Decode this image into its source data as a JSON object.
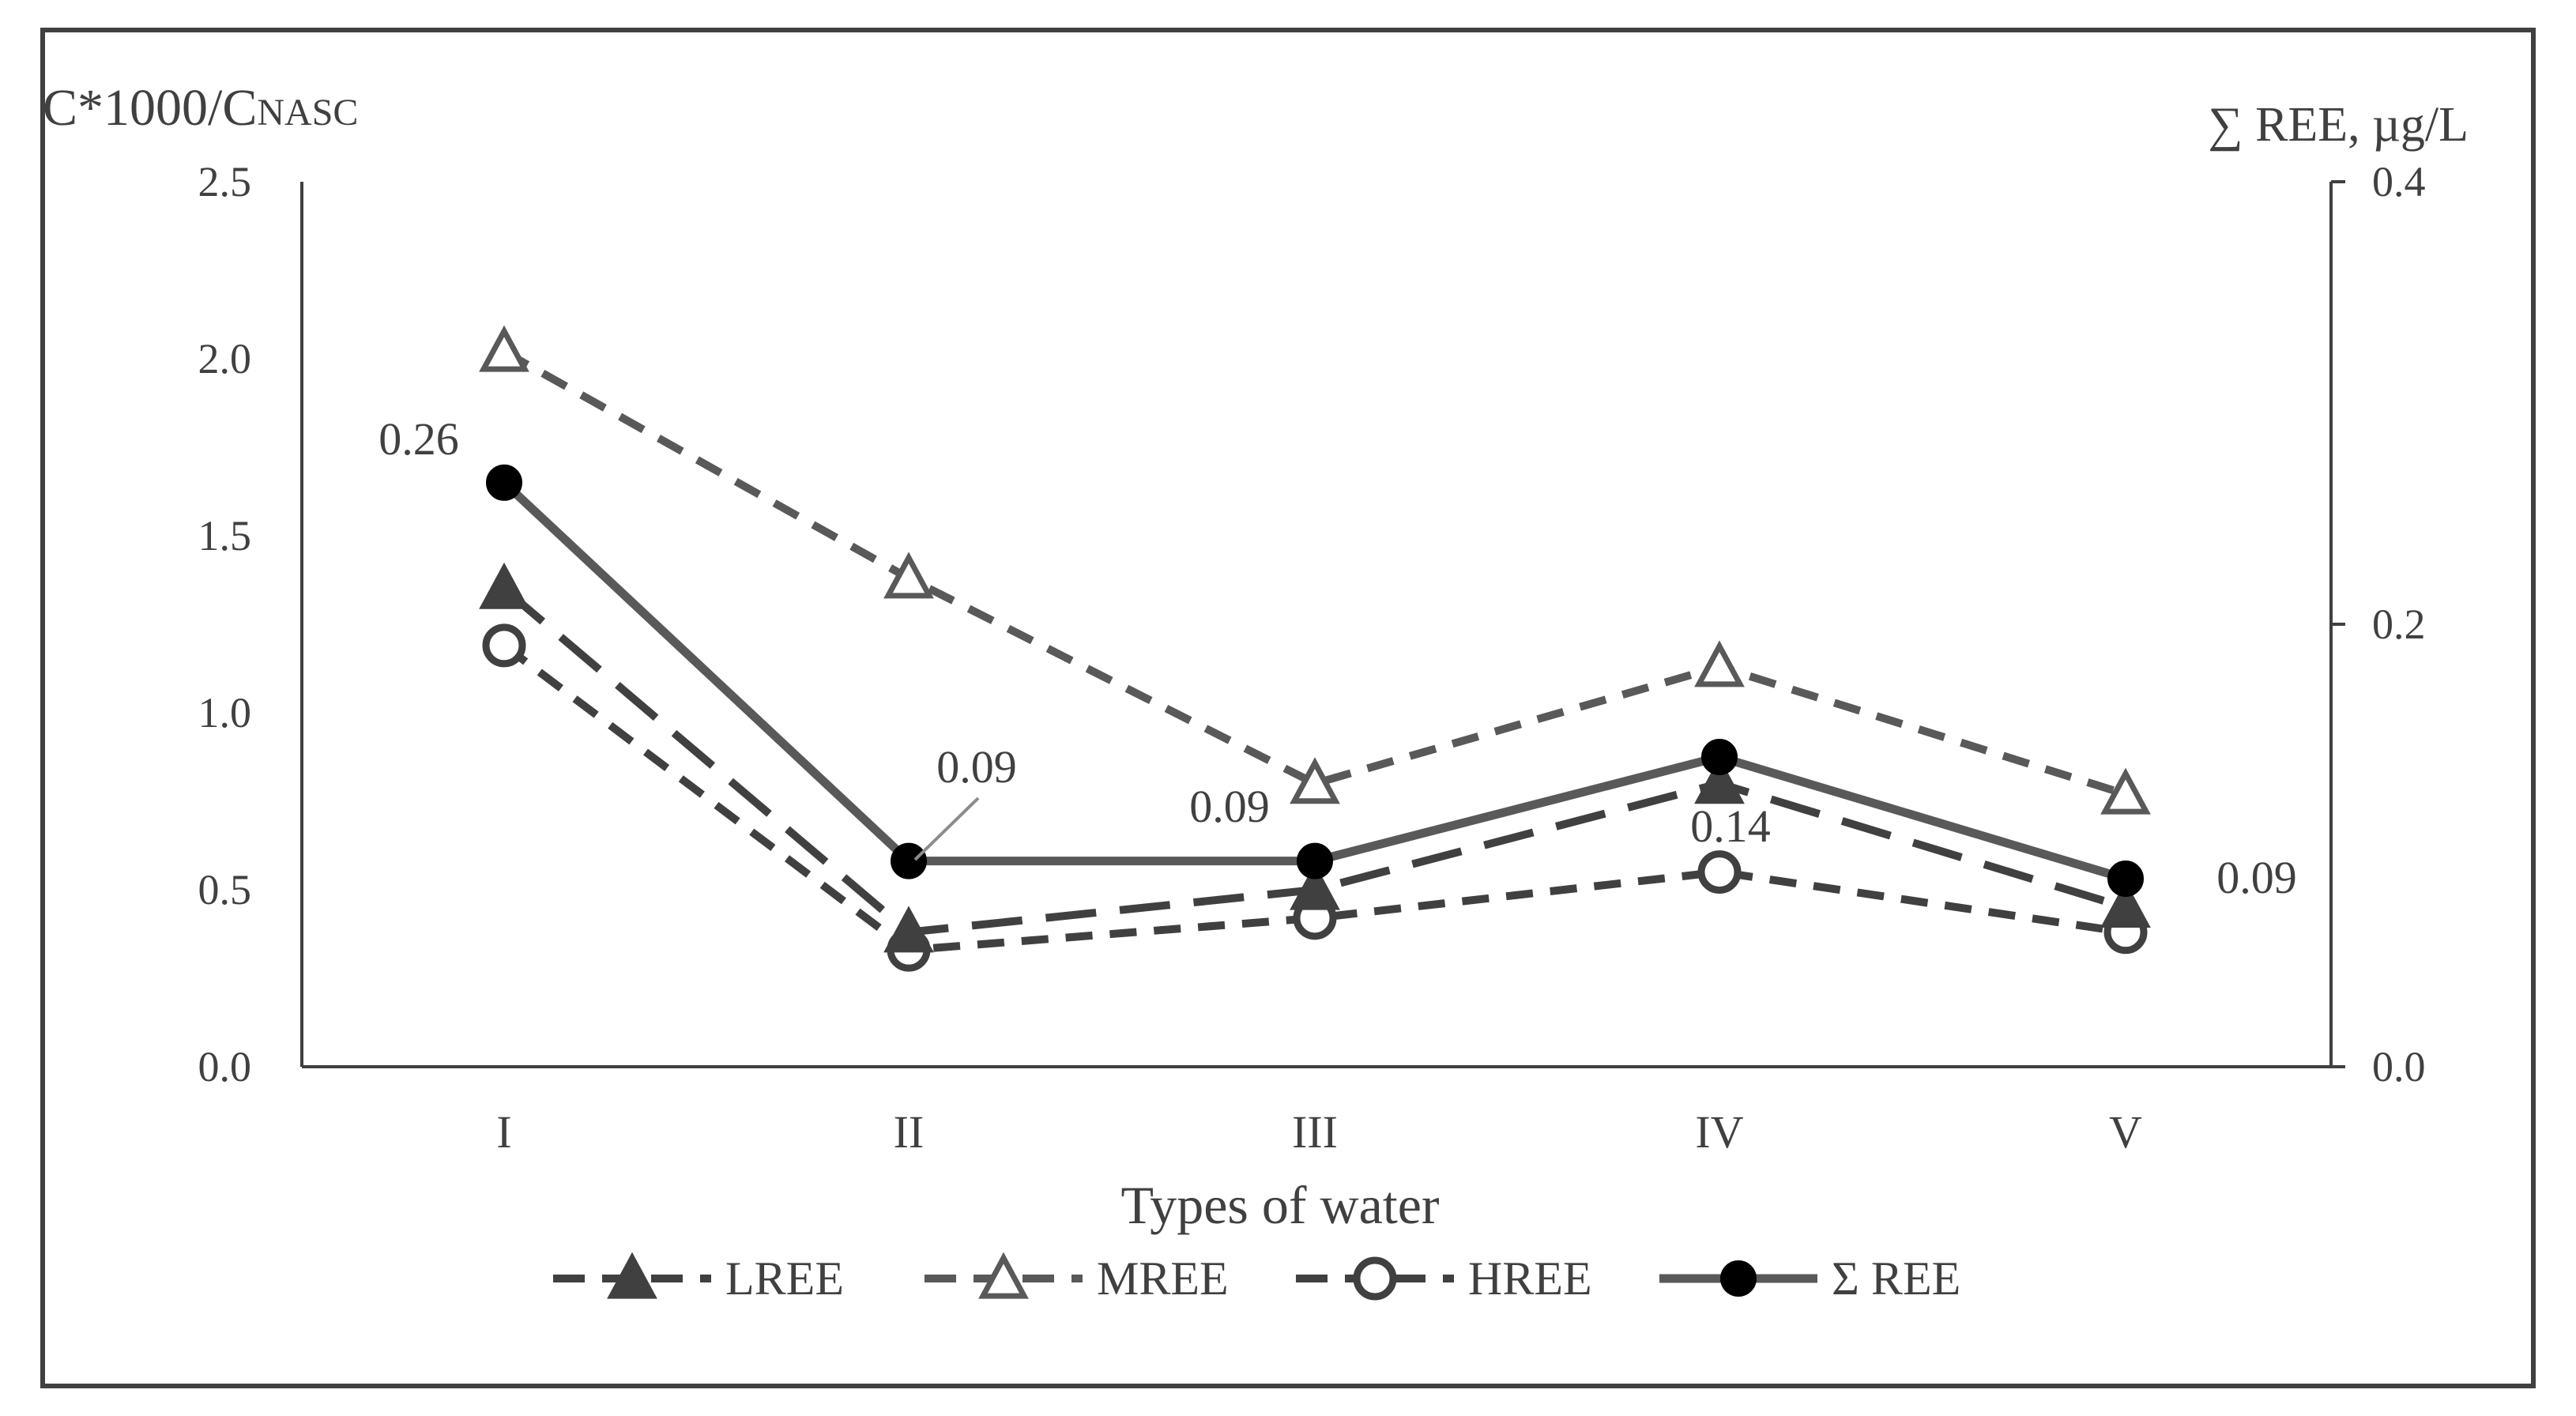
{
  "chart_data": {
    "type": "line",
    "xlabel": "Types of water",
    "ylabel_left": "C*1000/C",
    "ylabel_left_subscript": "NASC",
    "ylabel_right": "∑ REE, µg/L",
    "categories": [
      "I",
      "II",
      "III",
      "IV",
      "V"
    ],
    "ylim_left": [
      0,
      2.5
    ],
    "yticks_left": [
      "0.0",
      "0.5",
      "1.0",
      "1.5",
      "2.0",
      "2.5"
    ],
    "ylim_right": [
      0,
      0.4
    ],
    "yticks_right": [
      "0.0",
      "0.2",
      "0.4"
    ],
    "grid": false,
    "legend_position": "bottom",
    "series": [
      {
        "name": "LREE",
        "axis": "left",
        "values": [
          1.35,
          0.38,
          0.5,
          0.8,
          0.45
        ],
        "line": "long-dash",
        "marker": "triangle-filled",
        "color": "#404040"
      },
      {
        "name": "MREE",
        "axis": "left",
        "values": [
          2.02,
          1.38,
          0.8,
          1.13,
          0.77
        ],
        "line": "dash",
        "marker": "triangle-open",
        "color": "#595959"
      },
      {
        "name": "HREE",
        "axis": "left",
        "values": [
          1.19,
          0.33,
          0.42,
          0.55,
          0.38
        ],
        "line": "dash",
        "marker": "circle-open",
        "color": "#404040"
      },
      {
        "name": "Σ REE",
        "axis": "right",
        "values": [
          0.264,
          0.093,
          0.093,
          0.14,
          0.085
        ],
        "line": "solid",
        "marker": "circle-filled",
        "color": "#595959"
      }
    ],
    "data_labels": [
      "0.26",
      "0.09",
      "0.09",
      "0.14",
      "0.09"
    ]
  }
}
